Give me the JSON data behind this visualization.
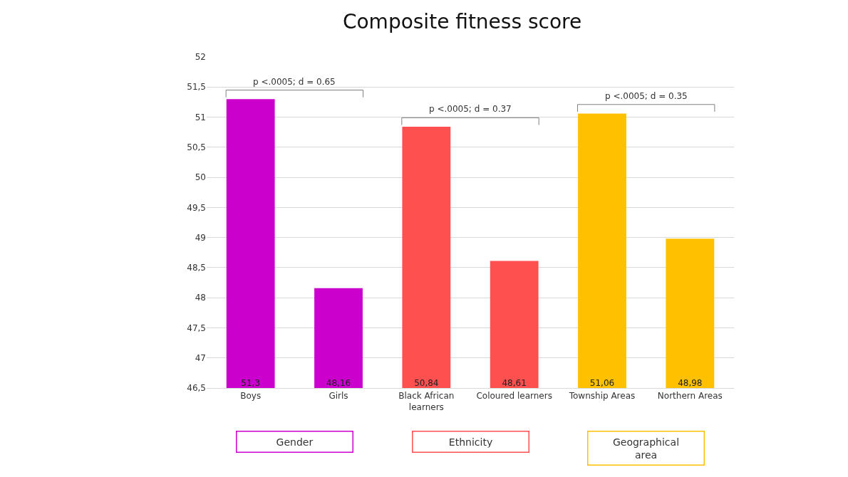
{
  "chart_data": {
    "type": "bar",
    "title": "Composite fitness score",
    "categories": [
      "Boys",
      "Girls",
      "Black African learners",
      "Coloured learners",
      "Township Areas",
      "Northern Areas"
    ],
    "values": [
      51.3,
      48.16,
      50.84,
      48.61,
      51.06,
      48.98
    ],
    "value_labels": [
      "51,3",
      "48,16",
      "50,84",
      "48,61",
      "51,06",
      "48,98"
    ],
    "colors": [
      "#cc00cc",
      "#cc00cc",
      "#ff5050",
      "#ff5050",
      "#ffc000",
      "#ffc000"
    ],
    "ylim": [
      46.5,
      52
    ],
    "yticks": [
      {
        "value": 46.5,
        "label": "46,5"
      },
      47,
      {
        "value": 47.5,
        "label": "47,5"
      },
      48,
      {
        "value": 48.5,
        "label": "48,5"
      },
      49,
      {
        "value": 49.5,
        "label": "49,5"
      },
      50,
      {
        "value": 50.5,
        "label": "50,5"
      },
      51,
      {
        "value": 51.5,
        "label": "51,5"
      },
      52
    ],
    "grid": "y",
    "annotations": [
      "p <.0005; d = 0.65",
      "p <.0005; d = 0.37",
      "p <.0005; d = 0.35",
      "Gender",
      "Ethnicity",
      "Geographical area"
    ]
  }
}
